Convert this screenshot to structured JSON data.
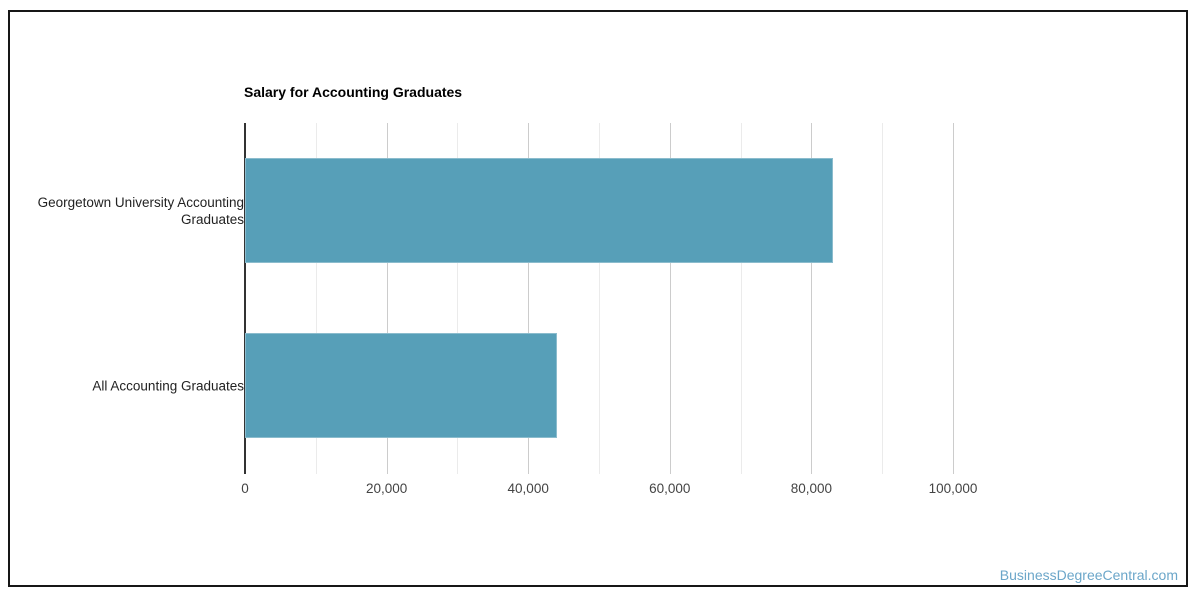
{
  "watermark": {
    "text": "BusinessDegreeCentral.com"
  },
  "chart_data": {
    "type": "bar",
    "orientation": "horizontal",
    "title": "Salary for Accounting Graduates",
    "categories": [
      "Georgetown University Accounting Graduates",
      "All Accounting Graduates"
    ],
    "values": [
      83000,
      44000
    ],
    "xlabel": "",
    "ylabel": "",
    "xlim": [
      0,
      100000
    ],
    "x_label_step": 20000,
    "x_minor_gridline_step": 10000,
    "x_tick_labels": [
      "0",
      "20,000",
      "40,000",
      "60,000",
      "80,000",
      "100,000"
    ],
    "grid": "vertical",
    "legend": false,
    "colors": {
      "bar": "#579fb8",
      "bar_edge": "#8bbccd",
      "axis_line": "#333333",
      "major_gridline": "#cccccc",
      "minor_gridline": "#ebebeb",
      "tick_text": "#444444",
      "category_text": "#222222",
      "title_text": "#000000",
      "watermark": "#6ba6c9"
    }
  }
}
